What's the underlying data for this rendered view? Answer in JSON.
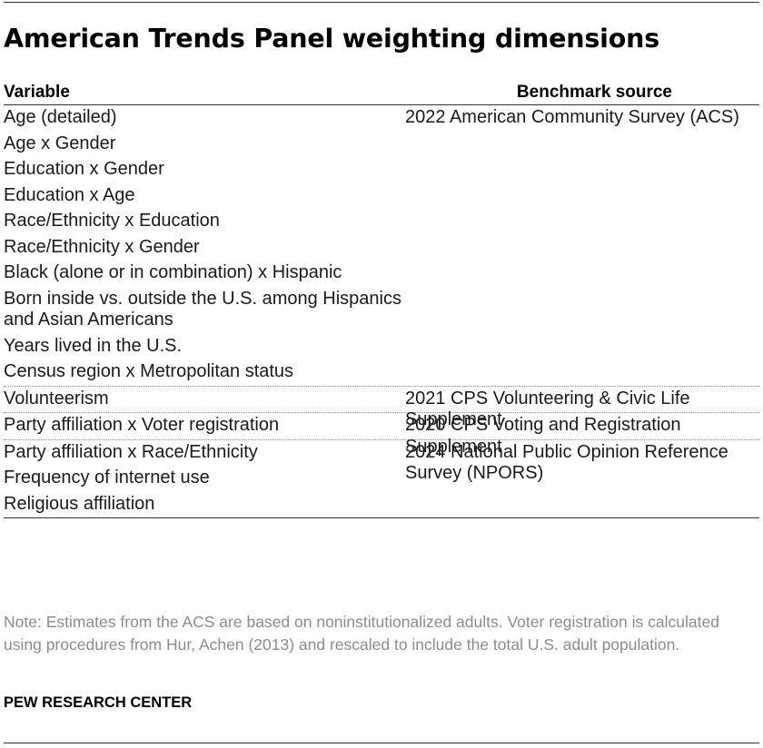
{
  "title": "American Trends Panel weighting dimensions",
  "table": {
    "header": {
      "variable": "Variable",
      "source": "Benchmark source"
    },
    "groups": [
      {
        "variables": [
          "Age (detailed)",
          "Age x Gender",
          "Education x Gender",
          "Education x Age",
          "Race/Ethnicity x Education",
          "Race/Ethnicity x Gender",
          "Black (alone or in combination) x Hispanic",
          "Born inside vs. outside the U.S. among Hispanics and Asian Americans",
          "Years lived in the U.S.",
          "Census region x Metropolitan status"
        ],
        "source": "2022 American Community Survey (ACS)"
      },
      {
        "variables": [
          "Volunteerism"
        ],
        "source": "2021 CPS Volunteering & Civic Life Supplement"
      },
      {
        "variables": [
          "Party affiliation x Voter registration"
        ],
        "source": "2020 CPS Voting and Registration Supplement"
      },
      {
        "variables": [
          "Party affiliation x Race/Ethnicity",
          "Frequency of internet use",
          "Religious affiliation"
        ],
        "source": "2024 National Public Opinion Reference Survey (NPORS)"
      }
    ]
  },
  "note": "Note: Estimates from the ACS are based on noninstitutionalized adults. Voter registration is calculated using procedures from Hur, Achen (2013) and rescaled to include the total U.S. adult population.",
  "credit": "PEW RESEARCH CENTER"
}
